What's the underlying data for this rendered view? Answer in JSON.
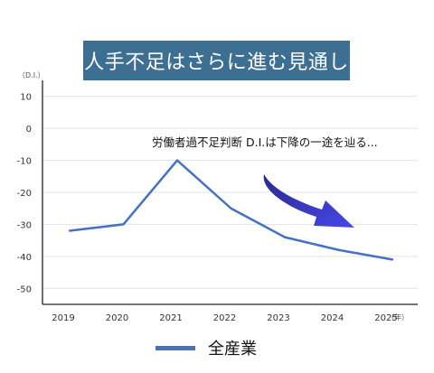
{
  "chart_data": {
    "type": "line",
    "title": "人手不足はさらに進む見通し",
    "y_unit_label": "（D.I.）",
    "x_unit_label": "（年）",
    "categories": [
      "2019",
      "2020",
      "2021",
      "2022",
      "2023",
      "2024",
      "2025"
    ],
    "series": [
      {
        "name": "全産業",
        "values": [
          -32,
          -30,
          -10,
          -25,
          -34,
          -38,
          -41
        ],
        "color": "#4472c4"
      }
    ],
    "ylim": [
      -55,
      15
    ],
    "yticks": [
      10,
      0,
      -10,
      -20,
      -30,
      -40,
      -50
    ],
    "grid": true,
    "legend_position": "bottom",
    "annotation": "労働者過不足判断 D.I.は下降の一途を辿る..."
  },
  "colors": {
    "banner": "#3d6f93",
    "line": "#4472c4",
    "arrow": "#3f3fd9"
  }
}
